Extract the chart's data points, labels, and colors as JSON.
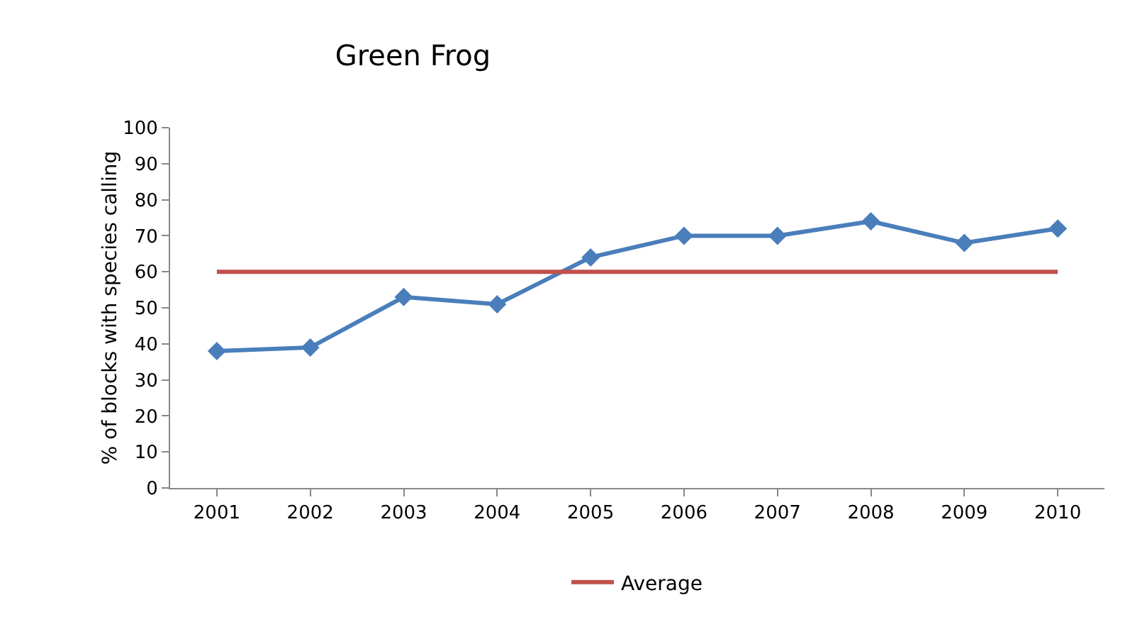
{
  "chart_data": {
    "type": "line",
    "title": "Green Frog",
    "ylabel": "% of blocks with species calling",
    "categories": [
      "2001",
      "2002",
      "2003",
      "2004",
      "2005",
      "2006",
      "2007",
      "2008",
      "2009",
      "2010"
    ],
    "series": [
      {
        "color": "#4a7ebb",
        "values": [
          38,
          39,
          53,
          51,
          64,
          70,
          70,
          74,
          68,
          72
        ],
        "marker": "diamond"
      },
      {
        "name": "Average",
        "color": "#c0504d",
        "values": [
          60,
          60,
          60,
          60,
          60,
          60,
          60,
          60,
          60,
          60
        ],
        "marker": "none"
      }
    ],
    "ylim": [
      0,
      100
    ],
    "yticks": [
      0,
      10,
      20,
      30,
      40,
      50,
      60,
      70,
      80,
      90,
      100
    ],
    "grid": false,
    "legend": "bottom",
    "line_style": "solid"
  }
}
